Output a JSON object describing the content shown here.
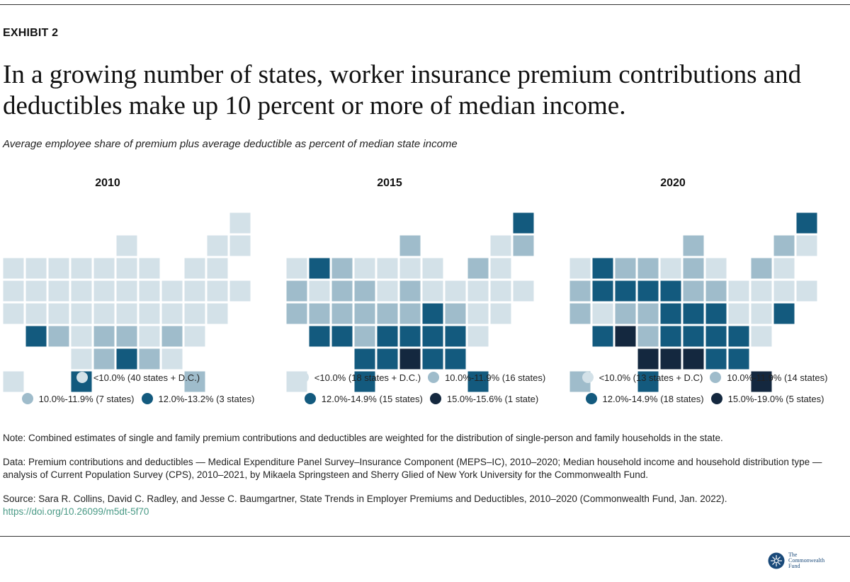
{
  "exhibit_label": "EXHIBIT 2",
  "title": "In a growing number of states, worker insurance premium contributions and deductibles make up 10 percent or more of median income.",
  "subtitle": "Average employee share of premium plus average deductible as percent of median state income",
  "colors": {
    "light": "#d3e1e8",
    "medium": "#9fbccb",
    "dark": "#135a7e",
    "darkest": "#14283f"
  },
  "chart_data": [
    {
      "type": "choropleth",
      "title": "2010",
      "legend": [
        {
          "key": "light",
          "label": "<10.0% (40 states + D.C.)"
        },
        {
          "key": "medium",
          "label": "10.0%-11.9% (7 states)"
        },
        {
          "key": "dark",
          "label": "12.0%-13.2% (3 states)"
        }
      ],
      "bins": {
        "dark": [
          "AZ",
          "TX",
          "MS"
        ],
        "medium": [
          "NM",
          "AR",
          "LA",
          "TN",
          "AL",
          "SC",
          "FL"
        ]
      }
    },
    {
      "type": "choropleth",
      "title": "2015",
      "legend": [
        {
          "key": "light",
          "label": "<10.0% (18 states + D.C.)"
        },
        {
          "key": "medium",
          "label": "10.0%-11.9% (16 states)"
        },
        {
          "key": "dark",
          "label": "12.0%-14.9% (15 states)"
        },
        {
          "key": "darkest",
          "label": "15.0%-15.6% (1 state)"
        }
      ],
      "bins": {
        "darkest": [
          "MS"
        ],
        "dark": [
          "ID",
          "AZ",
          "NM",
          "TX",
          "OK",
          "AR",
          "LA",
          "AL",
          "GA",
          "FL",
          "SC",
          "NC",
          "TN",
          "WV",
          "ME"
        ],
        "medium": [
          "OR",
          "CA",
          "MT",
          "WY",
          "UT",
          "CO",
          "SD",
          "NE",
          "KS",
          "MO",
          "WI",
          "IN",
          "KY",
          "NY",
          "VA",
          "NH"
        ]
      }
    },
    {
      "type": "choropleth",
      "title": "2020",
      "legend": [
        {
          "key": "light",
          "label": "<10.0% (13 states + D.C)"
        },
        {
          "key": "medium",
          "label": "10.0%-11.9% (14 states)"
        },
        {
          "key": "dark",
          "label": "12.0%-14.9% (18 states)"
        },
        {
          "key": "darkest",
          "label": "15.0%-19.0% (5 states)"
        }
      ],
      "bins": {
        "darkest": [
          "NM",
          "OK",
          "MS",
          "LA",
          "FL"
        ],
        "dark": [
          "ID",
          "NV",
          "AZ",
          "WY",
          "SD",
          "TX",
          "AR",
          "IA",
          "MO",
          "TN",
          "KY",
          "WV",
          "AL",
          "GA",
          "SC",
          "NC",
          "ME",
          "DE"
        ],
        "medium": [
          "OR",
          "CA",
          "MT",
          "CO",
          "KS",
          "NE",
          "ND",
          "WI",
          "IL",
          "IN",
          "OH",
          "NY",
          "AK",
          "VT"
        ]
      }
    }
  ],
  "notes": {
    "note": "Note: Combined estimates of single and family premium contributions and deductibles are weighted for the distribution of single-person and family households in the state.",
    "data": "Data: Premium contributions and deductibles — Medical Expenditure Panel Survey–Insurance Component (MEPS–IC), 2010–2020; Median household income and household distribution type — analysis of Current Population Survey (CPS), 2010–2021, by Mikaela Springsteen and Sherry Glied of New York University for the Commonwealth Fund.",
    "source": "Source: Sara R. Collins, David C. Radley, and Jesse C. Baumgartner, State Trends in Employer Premiums and Deductibles, 2010–2020 (Commonwealth Fund, Jan. 2022).",
    "doi": "https://doi.org/10.26099/m5dt-5f70"
  },
  "logo": {
    "line1": "The",
    "line2": "Commonwealth",
    "line3": "Fund"
  }
}
